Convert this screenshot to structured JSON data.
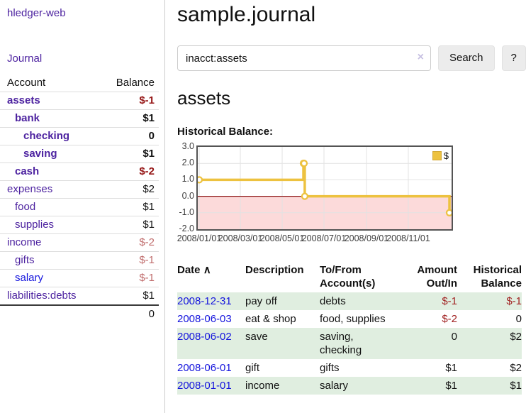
{
  "app": {
    "title": "hledger-web"
  },
  "colors": {
    "accent_purple": "#4d23a0",
    "link_blue": "#1414dd",
    "negative_strong": "#951515",
    "negative_soft": "#c06c6c",
    "negative_table": "#a12222",
    "row_stripe_green": "#e0eee0",
    "chart_series_gold": "#edc240",
    "chart_negative_fill": "#fcdada",
    "chart_zero_line": "#8b1515",
    "chart_grid": "#e2e2e2",
    "chart_border": "#545454"
  },
  "sidebar": {
    "journal_link": "Journal",
    "accounts_table": {
      "account_header": "Account",
      "balance_header": "Balance",
      "rows": [
        {
          "name": "assets",
          "balance": "$-1",
          "level": 1,
          "bold": true,
          "balance_class": "neg-strong",
          "link_class": ""
        },
        {
          "name": "bank",
          "balance": "$1",
          "level": 2,
          "bold": true,
          "balance_class": "",
          "link_class": ""
        },
        {
          "name": "checking",
          "balance": "0",
          "level": 3,
          "bold": true,
          "balance_class": "",
          "link_class": ""
        },
        {
          "name": "saving",
          "balance": "$1",
          "level": 3,
          "bold": true,
          "balance_class": "",
          "link_class": ""
        },
        {
          "name": "cash",
          "balance": "$-2",
          "level": 2,
          "bold": true,
          "balance_class": "neg-strong",
          "link_class": ""
        },
        {
          "name": "expenses",
          "balance": "$2",
          "level": 1,
          "bold": false,
          "balance_class": "",
          "link_class": ""
        },
        {
          "name": "food",
          "balance": "$1",
          "level": 2,
          "bold": false,
          "balance_class": "",
          "link_class": ""
        },
        {
          "name": "supplies",
          "balance": "$1",
          "level": 2,
          "bold": false,
          "balance_class": "",
          "link_class": ""
        },
        {
          "name": "income",
          "balance": "$-2",
          "level": 1,
          "bold": false,
          "balance_class": "neg-soft",
          "link_class": ""
        },
        {
          "name": "gifts",
          "balance": "$-1",
          "level": 2,
          "bold": false,
          "balance_class": "neg-soft",
          "link_class": ""
        },
        {
          "name": "salary",
          "balance": "$-1",
          "level": 2,
          "bold": false,
          "balance_class": "neg-soft",
          "link_class": "blue"
        },
        {
          "name": "liabilities:debts",
          "balance": "$1",
          "level": 1,
          "bold": false,
          "balance_class": "",
          "link_class": ""
        }
      ],
      "total": "0"
    }
  },
  "main": {
    "title": "sample.journal",
    "search": {
      "value": "inacct:assets",
      "clear_icon": "×",
      "search_button": "Search",
      "help_button": "?"
    },
    "account_heading": "assets",
    "chart_label": "Historical Balance:",
    "register_table": {
      "headers": {
        "date": "Date",
        "sort_arrow": "∧",
        "description": "Description",
        "accounts": "To/From Account(s)",
        "amount": "Amount Out/In",
        "balance": "Historical Balance"
      },
      "rows": [
        {
          "date": "2008-12-31",
          "description": "pay off",
          "accounts": "debts",
          "amount": "$-1",
          "amount_negative": true,
          "balance": "$-1",
          "balance_negative": true
        },
        {
          "date": "2008-06-03",
          "description": "eat & shop",
          "accounts": "food, supplies",
          "amount": "$-2",
          "amount_negative": true,
          "balance": "0",
          "balance_negative": false
        },
        {
          "date": "2008-06-02",
          "description": "save",
          "accounts": "saving, checking",
          "amount": "0",
          "amount_negative": false,
          "balance": "$2",
          "balance_negative": false
        },
        {
          "date": "2008-06-01",
          "description": "gift",
          "accounts": "gifts",
          "amount": "$1",
          "amount_negative": false,
          "balance": "$2",
          "balance_negative": false
        },
        {
          "date": "2008-01-01",
          "description": "income",
          "accounts": "salary",
          "amount": "$1",
          "amount_negative": false,
          "balance": "$1",
          "balance_negative": false
        }
      ]
    }
  },
  "chart_data": {
    "type": "line",
    "style": "step-after",
    "title": "Historical Balance",
    "series": [
      {
        "name": "$",
        "color": "#edc240",
        "points": [
          {
            "x": "2008-01-01",
            "y": 1
          },
          {
            "x": "2008-06-01",
            "y": 2
          },
          {
            "x": "2008-06-02",
            "y": 2
          },
          {
            "x": "2008-06-03",
            "y": 0
          },
          {
            "x": "2008-12-31",
            "y": -1
          }
        ]
      }
    ],
    "ylim": [
      -2,
      3
    ],
    "y_ticks": [
      3,
      2,
      1,
      0,
      -1,
      -2
    ],
    "y_tick_labels": [
      "3.0",
      "2.0",
      "1.0",
      "0.0",
      "-1.0",
      "-2.0"
    ],
    "x_range": [
      "2008-01-01",
      "2008-12-31"
    ],
    "x_ticks": [
      "2008-01-01",
      "2008-03-01",
      "2008-05-01",
      "2008-07-01",
      "2008-09-01",
      "2008-11-01"
    ],
    "x_tick_labels": [
      "2008/01/01",
      "2008/03/01",
      "2008/05/01",
      "2008/07/01",
      "2008/09/01",
      "2008/11/01"
    ],
    "legend": {
      "label": "$",
      "position": "top-right"
    },
    "grid": true,
    "negative_region_fill": "#fcdada",
    "zero_line_color": "#8b1515"
  }
}
